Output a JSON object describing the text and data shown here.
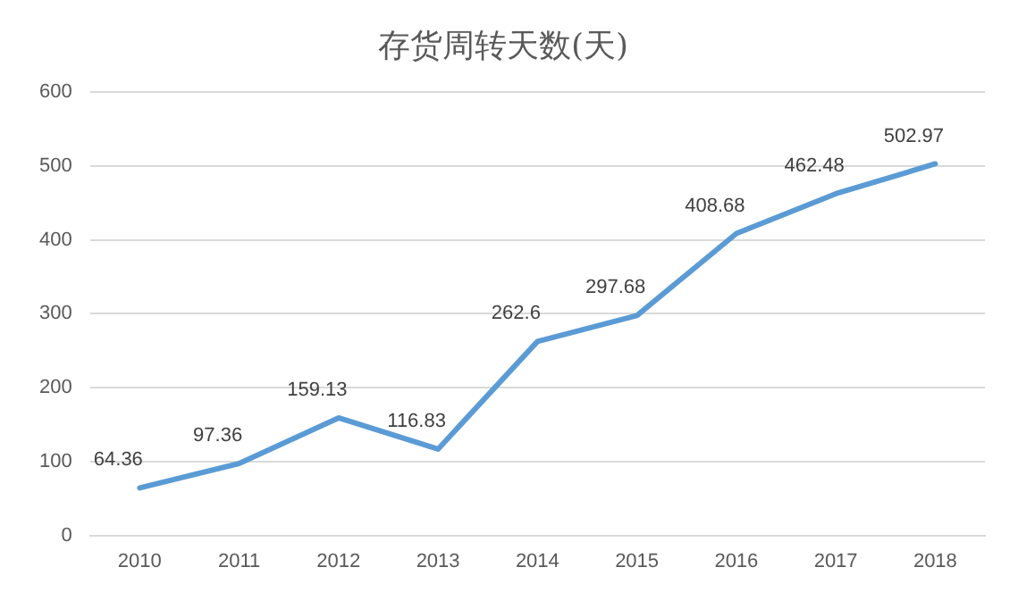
{
  "chart_data": {
    "type": "line",
    "title": "存货周转天数(天)",
    "categories": [
      "2010",
      "2011",
      "2012",
      "2013",
      "2014",
      "2015",
      "2016",
      "2017",
      "2018"
    ],
    "series": [
      {
        "color": "#5b9bd5",
        "values": [
          64.36,
          97.36,
          159.13,
          116.83,
          262.6,
          297.68,
          408.68,
          462.48,
          502.97
        ]
      }
    ],
    "ylim": [
      0,
      600
    ],
    "yticks": [
      0,
      100,
      200,
      300,
      400,
      500,
      600
    ],
    "grid": "y",
    "legend": false,
    "marker": "none",
    "line_style": "solid",
    "data_labels": true
  }
}
